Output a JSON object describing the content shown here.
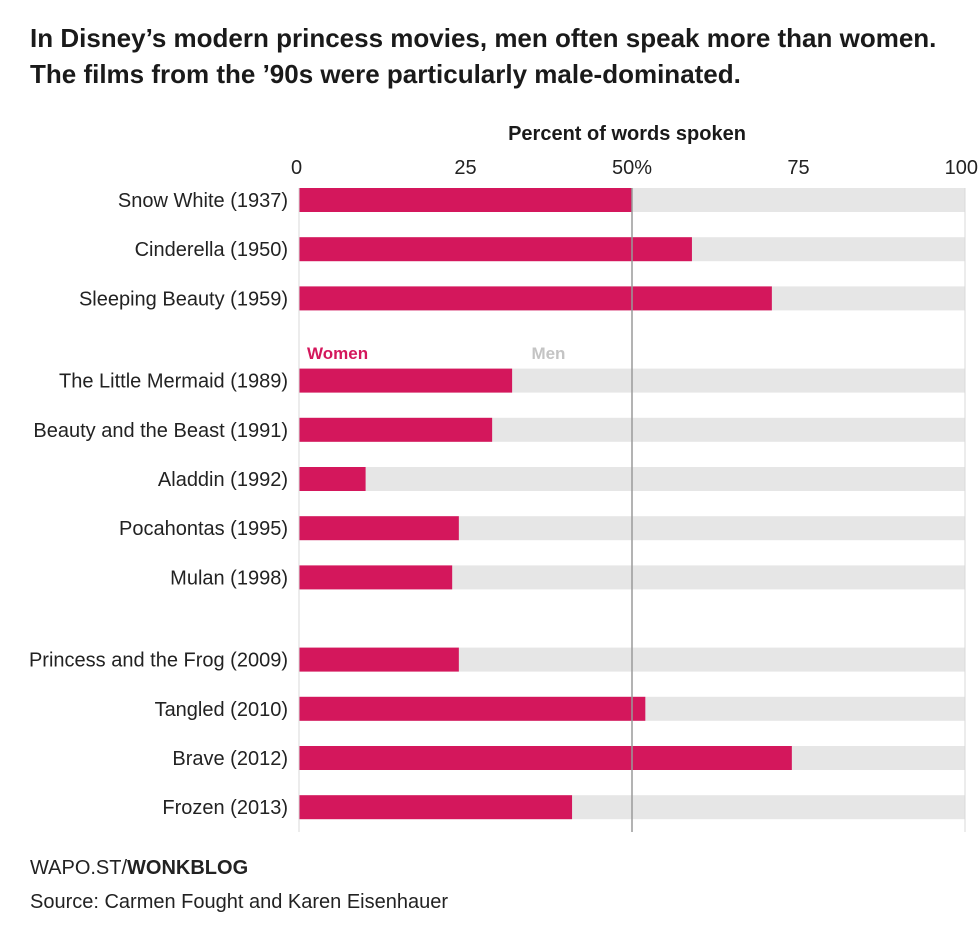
{
  "title": "In Disney’s modern princess movies, men often speak more than women. The films from the ’90s were particularly male-dominated.",
  "credit": {
    "prefix": "WAPO.ST/",
    "bold": "WONKBLOG"
  },
  "source": "Source: Carmen Fought and Karen Eisenhauer",
  "colors": {
    "women": "#d4175c",
    "men": "#e6e6e6",
    "men_label": "#c4c4c4",
    "gridline": "#9a9a9a",
    "text": "#222222"
  },
  "chart_data": {
    "type": "bar",
    "orientation": "horizontal",
    "stacked": true,
    "xlabel": "Percent of words spoken",
    "xlim": [
      0,
      100
    ],
    "ticks": [
      {
        "value": 0,
        "label": "0"
      },
      {
        "value": 25,
        "label": "25"
      },
      {
        "value": 50,
        "label": "50%"
      },
      {
        "value": 75,
        "label": "75"
      },
      {
        "value": 100,
        "label": "100"
      }
    ],
    "reference_line": 50,
    "legend": {
      "women": "Women",
      "men": "Men"
    },
    "categories": [
      "Snow White (1937)",
      "Cinderella (1950)",
      "Sleeping Beauty (1959)",
      "The Little Mermaid (1989)",
      "Beauty and the Beast (1991)",
      "Aladdin (1992)",
      "Pocahontas (1995)",
      "Mulan (1998)",
      "Princess and the Frog (2009)",
      "Tangled (2010)",
      "Brave (2012)",
      "Frozen (2013)"
    ],
    "groups": [
      0,
      0,
      0,
      1,
      1,
      1,
      1,
      1,
      2,
      2,
      2,
      2
    ],
    "series": [
      {
        "name": "Women",
        "values": [
          50,
          59,
          71,
          32,
          29,
          10,
          24,
          23,
          24,
          52,
          74,
          41
        ]
      },
      {
        "name": "Men",
        "values": [
          50,
          41,
          29,
          68,
          71,
          90,
          76,
          77,
          76,
          48,
          26,
          59
        ]
      }
    ]
  }
}
